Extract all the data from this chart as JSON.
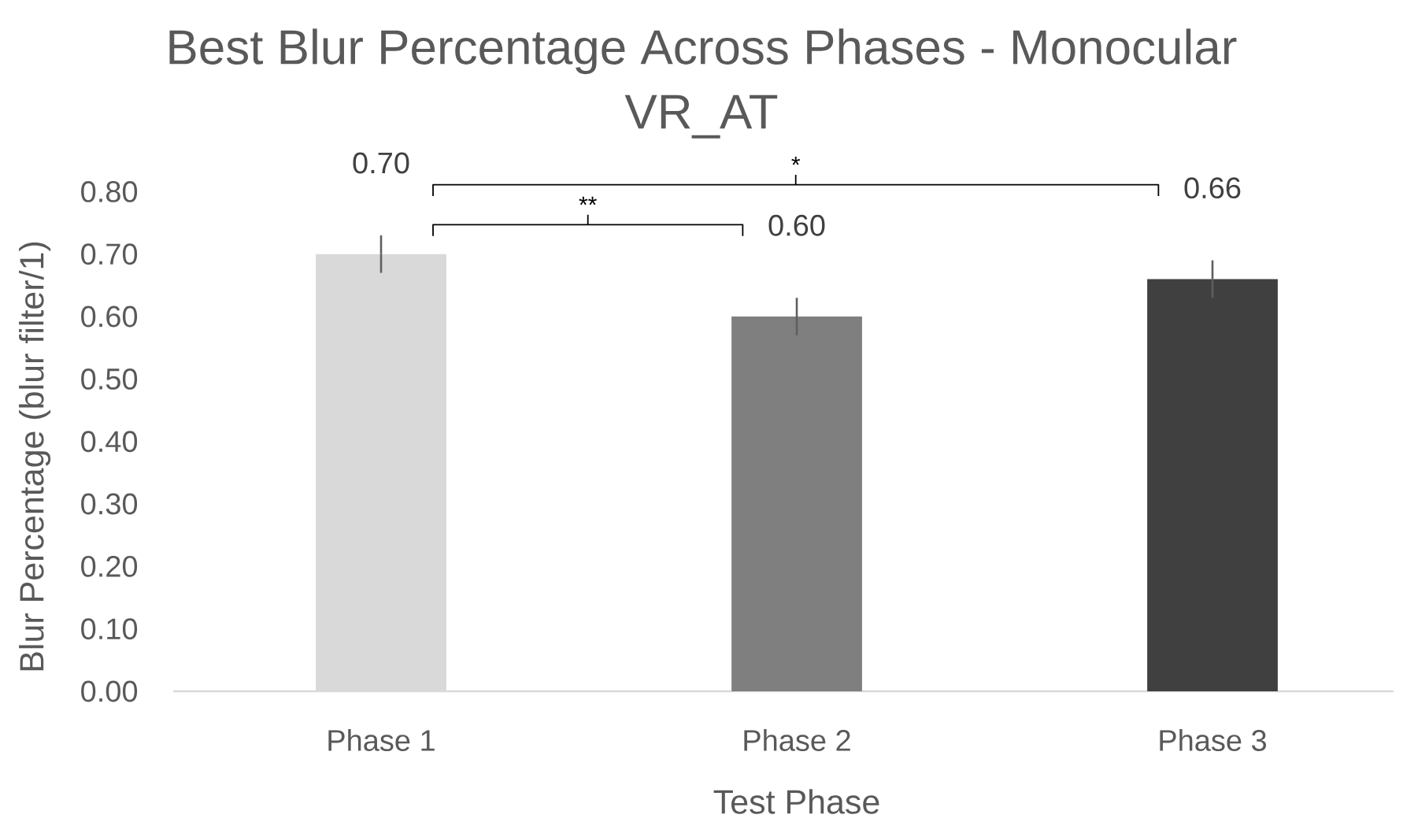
{
  "chart_data": {
    "type": "bar",
    "title": "Best Blur Percentage Across Phases - Monocular VR_AT",
    "xlabel": "Test Phase",
    "ylabel": "Blur Percentage (blur filter/1)",
    "categories": [
      "Phase 1",
      "Phase 2",
      "Phase 3"
    ],
    "values": [
      0.7,
      0.6,
      0.66
    ],
    "colors": [
      "#d9d9d9",
      "#7f7f7f",
      "#404040"
    ],
    "errors": [
      0.03,
      0.03,
      0.03
    ],
    "value_labels": [
      "0.70",
      "0.60",
      "0.66"
    ],
    "ylim": [
      0,
      0.8
    ],
    "yticks": [
      {
        "value": 0,
        "label": "0.00"
      },
      {
        "value": 0.1,
        "label": "0.10"
      },
      {
        "value": 0.2,
        "label": "0.20"
      },
      {
        "value": 0.3,
        "label": "0.30"
      },
      {
        "value": 0.4,
        "label": "0.40"
      },
      {
        "value": 0.5,
        "label": "0.50"
      },
      {
        "value": 0.6,
        "label": "0.60"
      },
      {
        "value": 0.7,
        "label": "0.70"
      },
      {
        "value": 0.8,
        "label": "0.80"
      }
    ],
    "annotations": [
      "**",
      "*"
    ]
  }
}
